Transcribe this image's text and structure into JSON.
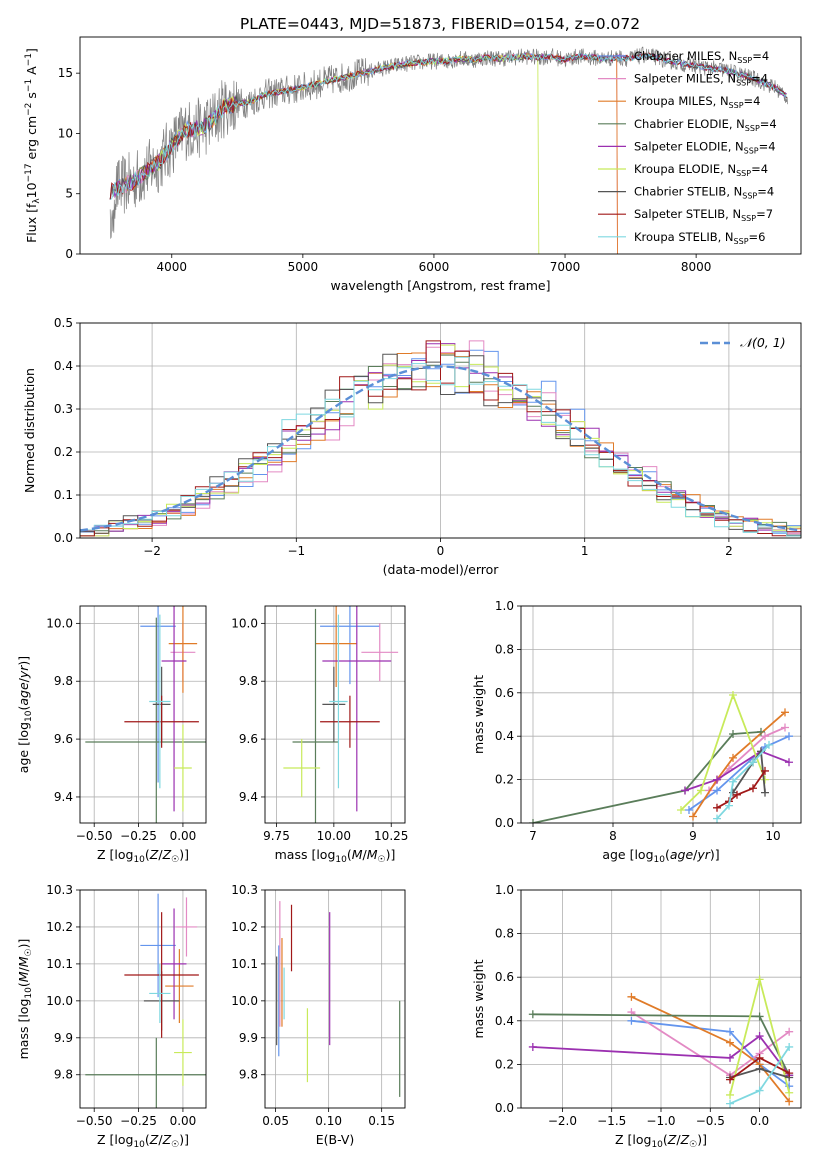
{
  "figure": {
    "title": "PLATE=0443, MJD=51873, FIBERID=0154, z=0.072"
  },
  "models": [
    {
      "name": "Chabrier MILES",
      "nssp": "4",
      "color": "#6495ed"
    },
    {
      "name": "Salpeter MILES",
      "nssp": "4",
      "color": "#e38ac4"
    },
    {
      "name": "Kroupa MILES",
      "nssp": "4",
      "color": "#e07b28"
    },
    {
      "name": "Chabrier ELODIE",
      "nssp": "4",
      "color": "#5a7d5a"
    },
    {
      "name": "Salpeter ELODIE",
      "nssp": "4",
      "color": "#9b30b0"
    },
    {
      "name": "Kroupa ELODIE",
      "nssp": "4",
      "color": "#c8ea5a"
    },
    {
      "name": "Chabrier STELIB",
      "nssp": "4",
      "color": "#555555"
    },
    {
      "name": "Salpeter STELIB",
      "nssp": "7",
      "color": "#a01818"
    },
    {
      "name": "Kroupa STELIB",
      "nssp": "6",
      "color": "#7fd8e0"
    }
  ],
  "chart_data": [
    {
      "id": "spectrum",
      "type": "line",
      "xlabel": "wavelength [Angstrom, rest frame]",
      "ylabel": "Flux [f_λ10^-17 erg cm^-2 s^-1 A^-1]",
      "xlim": [
        3300,
        8800
      ],
      "ylim": [
        0,
        18
      ],
      "xticks": [
        4000,
        5000,
        6000,
        7000,
        8000
      ],
      "yticks": [
        0,
        5,
        10,
        15
      ],
      "legend": "right",
      "data_color": "#808080",
      "continuum": {
        "x": [
          3530,
          3600,
          3700,
          3800,
          3900,
          4000,
          4100,
          4200,
          4300,
          4400,
          4500,
          4600,
          4700,
          4800,
          4900,
          5000,
          5100,
          5200,
          5300,
          5400,
          5500,
          5600,
          5700,
          5800,
          5900,
          6000,
          6100,
          6200,
          6300,
          6400,
          6500,
          6600,
          6700,
          6800,
          6900,
          7000,
          7100,
          7200,
          7300,
          7400,
          7500,
          7600,
          7700,
          7800,
          7900,
          8000,
          8100,
          8200,
          8300,
          8400,
          8500,
          8600,
          8700
        ],
        "y": [
          5.2,
          5.5,
          6.0,
          6.8,
          7.6,
          9.0,
          10.3,
          10.4,
          10.9,
          12.2,
          12.5,
          12.6,
          13.2,
          13.4,
          13.6,
          13.8,
          14.1,
          14.4,
          14.6,
          14.9,
          15.1,
          15.4,
          15.6,
          15.8,
          15.9,
          16.0,
          16.0,
          16.2,
          16.1,
          16.3,
          16.2,
          16.3,
          16.4,
          16.3,
          16.4,
          16.1,
          16.4,
          16.3,
          16.2,
          16.3,
          16.2,
          16.5,
          16.3,
          16.0,
          15.8,
          15.6,
          15.4,
          15.3,
          15.0,
          14.7,
          14.3,
          13.8,
          13.0
        ]
      },
      "model_cutoffs": {
        "Kroupa ELODIE": [
          3900,
          6800
        ],
        "Kroupa MILES": [
          3530,
          7400
        ],
        "Salpeter MILES": [
          3530,
          7400
        ]
      }
    },
    {
      "id": "residuals",
      "type": "histogram",
      "xlabel": "(data-model)/error",
      "ylabel": "Normed distribution",
      "xlim": [
        -2.5,
        2.5
      ],
      "ylim": [
        0,
        0.5
      ],
      "xticks": [
        -2,
        -1,
        0,
        1,
        2
      ],
      "yticks": [
        0.0,
        0.1,
        0.2,
        0.3,
        0.4,
        0.5
      ],
      "legend": "top-right",
      "reference": {
        "name": "𝒩(0, 1)",
        "mean": 0,
        "sigma": 1,
        "color": "#5b8fd6"
      },
      "bin_width": 0.1
    },
    {
      "id": "age-vs-z",
      "type": "errorbar",
      "xlabel": "Z [log10(Z/Z☉)]",
      "ylabel": "age [log10(age/yr)]",
      "xlim": [
        -0.58,
        0.13
      ],
      "ylim": [
        9.31,
        10.06
      ],
      "xticks": [
        -0.5,
        -0.25,
        0.0
      ],
      "yticks": [
        9.4,
        9.6,
        9.8,
        10.0
      ],
      "points": [
        {
          "model": "Chabrier MILES",
          "x": -0.14,
          "xerr": 0.1,
          "y": 9.99,
          "yerr": 0.54
        },
        {
          "model": "Salpeter MILES",
          "x": 0.0,
          "xerr": 0.07,
          "y": 9.9,
          "yerr": 0.1
        },
        {
          "model": "Kroupa MILES",
          "x": 0.0,
          "xerr": 0.08,
          "y": 9.93,
          "yerr": 0.17
        },
        {
          "model": "Chabrier ELODIE",
          "x": -0.15,
          "xerr": 0.4,
          "y": 9.59,
          "yerr": 0.43
        },
        {
          "model": "Salpeter ELODIE",
          "x": -0.05,
          "xerr": 0.07,
          "y": 9.87,
          "yerr": 0.52
        },
        {
          "model": "Kroupa ELODIE",
          "x": 0.0,
          "xerr": 0.05,
          "y": 9.5,
          "yerr": 0.15
        },
        {
          "model": "Chabrier STELIB",
          "x": -0.12,
          "xerr": 0.05,
          "y": 9.72,
          "yerr": 0.13
        },
        {
          "model": "Salpeter STELIB",
          "x": -0.12,
          "xerr": 0.21,
          "y": 9.66,
          "yerr": 0.09
        },
        {
          "model": "Kroupa STELIB",
          "x": -0.13,
          "xerr": 0.06,
          "y": 9.73,
          "yerr": 0.3
        }
      ]
    },
    {
      "id": "age-vs-mass",
      "type": "errorbar",
      "xlabel": "mass [log10(M/M☉)]",
      "ylabel": "",
      "xlim": [
        9.7,
        10.31
      ],
      "ylim": [
        9.31,
        10.06
      ],
      "xticks": [
        9.75,
        10.0,
        10.25
      ],
      "yticks": [
        9.4,
        9.6,
        9.8,
        10.0
      ],
      "points": [
        {
          "model": "Chabrier MILES",
          "x": 10.07,
          "xerr": 0.13,
          "y": 9.99,
          "yerr": 0.2
        },
        {
          "model": "Salpeter MILES",
          "x": 10.2,
          "xerr": 0.08,
          "y": 9.9,
          "yerr": 0.1
        },
        {
          "model": "Kroupa MILES",
          "x": 10.01,
          "xerr": 0.09,
          "y": 9.93,
          "yerr": 0.15
        },
        {
          "model": "Chabrier ELODIE",
          "x": 9.92,
          "xerr": 0.1,
          "y": 9.59,
          "yerr": 0.46
        },
        {
          "model": "Salpeter ELODIE",
          "x": 10.1,
          "xerr": 0.15,
          "y": 9.87,
          "yerr": 0.52
        },
        {
          "model": "Kroupa ELODIE",
          "x": 9.86,
          "xerr": 0.08,
          "y": 9.5,
          "yerr": 0.1
        },
        {
          "model": "Chabrier STELIB",
          "x": 10.0,
          "xerr": 0.05,
          "y": 9.72,
          "yerr": 0.13
        },
        {
          "model": "Salpeter STELIB",
          "x": 10.07,
          "xerr": 0.13,
          "y": 9.66,
          "yerr": 0.09
        },
        {
          "model": "Kroupa STELIB",
          "x": 10.02,
          "xerr": 0.04,
          "y": 9.73,
          "yerr": 0.3
        }
      ]
    },
    {
      "id": "weight-vs-age",
      "type": "line",
      "xlabel": "age [log10(age/yr)]",
      "ylabel": "mass weight",
      "xlim": [
        6.85,
        10.35
      ],
      "ylim": [
        0,
        1.0
      ],
      "xticks": [
        7,
        8,
        9,
        10
      ],
      "yticks": [
        0.0,
        0.2,
        0.4,
        0.6,
        0.8,
        1.0
      ],
      "series": [
        {
          "model": "Chabrier MILES",
          "x": [
            8.95,
            9.3,
            9.9,
            10.2
          ],
          "y": [
            0.06,
            0.15,
            0.35,
            0.4
          ]
        },
        {
          "model": "Salpeter MILES",
          "x": [
            9.2,
            9.45,
            9.9,
            10.15
          ],
          "y": [
            0.15,
            0.25,
            0.4,
            0.44
          ]
        },
        {
          "model": "Kroupa MILES",
          "x": [
            9.0,
            9.3,
            9.5,
            10.15
          ],
          "y": [
            0.03,
            0.2,
            0.3,
            0.51
          ]
        },
        {
          "model": "Chabrier ELODIE",
          "x": [
            7.0,
            8.9,
            9.5,
            9.85
          ],
          "y": [
            0.0,
            0.15,
            0.41,
            0.42
          ]
        },
        {
          "model": "Salpeter ELODIE",
          "x": [
            8.9,
            9.3,
            9.85,
            10.2
          ],
          "y": [
            0.15,
            0.2,
            0.33,
            0.28
          ]
        },
        {
          "model": "Kroupa ELODIE",
          "x": [
            8.85,
            9.1,
            9.5,
            9.9
          ],
          "y": [
            0.06,
            0.15,
            0.59,
            0.2
          ]
        },
        {
          "model": "Chabrier STELIB",
          "x": [
            9.5,
            9.75,
            9.85,
            9.9
          ],
          "y": [
            0.14,
            0.28,
            0.33,
            0.14
          ]
        },
        {
          "model": "Salpeter STELIB",
          "x": [
            9.3,
            9.45,
            9.55,
            9.75,
            9.9
          ],
          "y": [
            0.07,
            0.1,
            0.13,
            0.16,
            0.24
          ]
        },
        {
          "model": "Kroupa STELIB",
          "x": [
            9.3,
            9.45,
            9.5,
            9.75,
            9.95
          ],
          "y": [
            0.02,
            0.08,
            0.19,
            0.28,
            0.36
          ]
        }
      ]
    },
    {
      "id": "mass-vs-z",
      "type": "errorbar",
      "xlabel": "Z [log10(Z/Z☉)]",
      "ylabel": "mass [log10(M/M☉)]",
      "xlim": [
        -0.58,
        0.13
      ],
      "ylim": [
        9.71,
        10.3
      ],
      "xticks": [
        -0.5,
        -0.25,
        0.0
      ],
      "yticks": [
        9.8,
        9.9,
        10.0,
        10.1,
        10.2,
        10.3
      ],
      "points": [
        {
          "model": "Chabrier MILES",
          "x": -0.14,
          "xerr": 0.1,
          "y": 10.15,
          "yerr": 0.14
        },
        {
          "model": "Salpeter MILES",
          "x": 0.02,
          "xerr": 0.06,
          "y": 10.2,
          "yerr": 0.08
        },
        {
          "model": "Kroupa MILES",
          "x": -0.02,
          "xerr": 0.08,
          "y": 10.04,
          "yerr": 0.1
        },
        {
          "model": "Chabrier ELODIE",
          "x": -0.15,
          "xerr": 0.4,
          "y": 9.8,
          "yerr": 0.1
        },
        {
          "model": "Salpeter ELODIE",
          "x": -0.05,
          "xerr": 0.07,
          "y": 10.1,
          "yerr": 0.15
        },
        {
          "model": "Kroupa ELODIE",
          "x": 0.0,
          "xerr": 0.05,
          "y": 9.86,
          "yerr": 0.09
        },
        {
          "model": "Chabrier STELIB",
          "x": -0.12,
          "xerr": 0.1,
          "y": 10.0,
          "yerr": 0.08
        },
        {
          "model": "Salpeter STELIB",
          "x": -0.12,
          "xerr": 0.21,
          "y": 10.07,
          "yerr": 0.17
        },
        {
          "model": "Kroupa STELIB",
          "x": -0.13,
          "xerr": 0.06,
          "y": 10.02,
          "yerr": 0.08
        }
      ]
    },
    {
      "id": "mass-vs-ebv",
      "type": "errorbar",
      "xlabel": "E(B-V)",
      "ylabel": "",
      "xlim": [
        0.04,
        0.172
      ],
      "ylim": [
        9.71,
        10.3
      ],
      "xticks": [
        0.05,
        0.1,
        0.15
      ],
      "yticks": [
        9.8,
        9.9,
        10.0,
        10.1,
        10.2,
        10.3
      ],
      "points": [
        {
          "model": "Chabrier MILES",
          "x": 0.053,
          "y": 10.0,
          "yerr": 0.15
        },
        {
          "model": "Salpeter MILES",
          "x": 0.054,
          "y": 10.1,
          "yerr": 0.17
        },
        {
          "model": "Kroupa MILES",
          "x": 0.056,
          "y": 10.05,
          "yerr": 0.12
        },
        {
          "model": "Chabrier ELODIE",
          "x": 0.167,
          "y": 9.87,
          "yerr": 0.13
        },
        {
          "model": "Salpeter ELODIE",
          "x": 0.101,
          "y": 10.06,
          "yerr": 0.18
        },
        {
          "model": "Kroupa ELODIE",
          "x": 0.08,
          "y": 9.88,
          "yerr": 0.1
        },
        {
          "model": "Chabrier STELIB",
          "x": 0.051,
          "y": 10.0,
          "yerr": 0.12
        },
        {
          "model": "Salpeter STELIB",
          "x": 0.065,
          "y": 10.17,
          "yerr": 0.09
        },
        {
          "model": "Kroupa STELIB",
          "x": 0.058,
          "y": 10.02,
          "yerr": 0.07
        }
      ]
    },
    {
      "id": "weight-vs-z",
      "type": "line",
      "xlabel": "Z [log10(Z/Z☉)]",
      "ylabel": "mass weight",
      "xlim": [
        -2.42,
        0.42
      ],
      "ylim": [
        0,
        1.0
      ],
      "xticks": [
        -2.0,
        -1.5,
        -1.0,
        -0.5,
        0.0
      ],
      "yticks": [
        0.0,
        0.2,
        0.4,
        0.6,
        0.8,
        1.0
      ],
      "series": [
        {
          "model": "Chabrier MILES",
          "x": [
            -1.3,
            -0.3,
            0.0,
            0.3
          ],
          "y": [
            0.4,
            0.35,
            0.2,
            0.1
          ]
        },
        {
          "model": "Salpeter MILES",
          "x": [
            -1.3,
            -0.3,
            0.0,
            0.3
          ],
          "y": [
            0.44,
            0.15,
            0.25,
            0.35
          ]
        },
        {
          "model": "Kroupa MILES",
          "x": [
            -1.3,
            -0.3,
            0.0,
            0.3
          ],
          "y": [
            0.51,
            0.3,
            0.2,
            0.03
          ]
        },
        {
          "model": "Chabrier ELODIE",
          "x": [
            -2.3,
            0.0,
            0.3
          ],
          "y": [
            0.43,
            0.42,
            0.15
          ]
        },
        {
          "model": "Salpeter ELODIE",
          "x": [
            -2.3,
            -0.3,
            0.0,
            0.3
          ],
          "y": [
            0.28,
            0.23,
            0.33,
            0.15
          ]
        },
        {
          "model": "Kroupa ELODIE",
          "x": [
            -0.3,
            0.0,
            0.3
          ],
          "y": [
            0.06,
            0.59,
            0.07
          ]
        },
        {
          "model": "Chabrier STELIB",
          "x": [
            -0.3,
            0.0,
            0.3
          ],
          "y": [
            0.14,
            0.18,
            0.14
          ]
        },
        {
          "model": "Salpeter STELIB",
          "x": [
            -0.3,
            0.0,
            0.3
          ],
          "y": [
            0.13,
            0.23,
            0.16
          ]
        },
        {
          "model": "Kroupa STELIB",
          "x": [
            -0.3,
            0.0,
            0.3
          ],
          "y": [
            0.02,
            0.08,
            0.28
          ]
        }
      ]
    }
  ]
}
